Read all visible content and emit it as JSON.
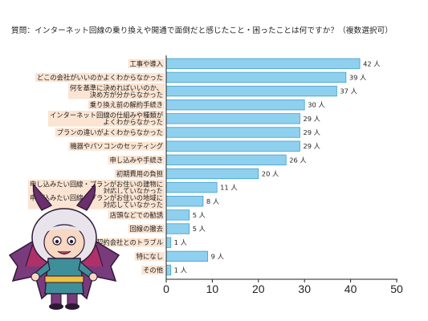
{
  "chart_data": {
    "type": "bar",
    "orientation": "horizontal",
    "title": "質問：インターネット回線の乗り換えや開通で面倒だと感じたこと・困ったことは何ですか？（複数選択可）",
    "unit": "人",
    "categories": [
      "工事や導入",
      "どこの会社がいいのかよくわからなかった",
      "何を基準に決めればいいのか、決め方が分からなかった",
      "乗り換え前の解約手続き",
      "インターネット回線の仕組みや種類がよくわからなかった",
      "プランの違いがよくわからなかった",
      "機器やパソコンのセッティング",
      "申し込みや手続き",
      "初期費用の負担",
      "申し込みたい回線・プランがお住いの建物に対応していなかった",
      "申し込みたい回線・プランがお住いの地域に対応していなかった",
      "店頭などでの勧誘",
      "回線の撤去",
      "契約会社とのトラブル",
      "特になし",
      "その他"
    ],
    "category_lines": [
      [
        "工事や導入"
      ],
      [
        "どこの会社がいいのかよくわからなかった"
      ],
      [
        "何を基準に決めればいいのか、",
        "決め方が分からなかった"
      ],
      [
        "乗り換え前の解約手続き"
      ],
      [
        "インターネット回線の仕組みや種類が",
        "よくわからなかった"
      ],
      [
        "プランの違いがよくわからなかった"
      ],
      [
        "機器やパソコンのセッティング"
      ],
      [
        "申し込みや手続き"
      ],
      [
        "初期費用の負担"
      ],
      [
        "申し込みたい回線・プランがお住いの建物に",
        "対応していなかった"
      ],
      [
        "申し込みたい回線・プランがお住いの地域に",
        "対応していなかった"
      ],
      [
        "店頭などでの勧誘"
      ],
      [
        "回線の撤去"
      ],
      [
        "契約会社とのトラブル"
      ],
      [
        "特になし"
      ],
      [
        "その他"
      ]
    ],
    "values": [
      42,
      39,
      37,
      30,
      29,
      29,
      29,
      26,
      20,
      11,
      8,
      5,
      5,
      1,
      9,
      1
    ],
    "xlim": [
      0,
      50
    ],
    "xticks": [
      0,
      10,
      20,
      30,
      40,
      50
    ],
    "grid": false,
    "colors": {
      "bar": "#8fd0ee",
      "bar_stroke": "#3f9fd0",
      "label_bg": "#fbe4d2",
      "axis": "#222222"
    }
  }
}
